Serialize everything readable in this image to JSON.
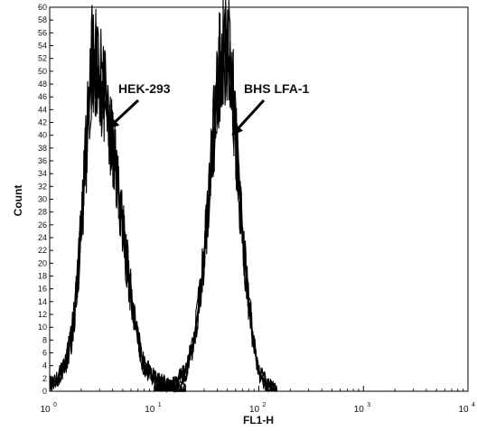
{
  "chart_data": {
    "type": "line",
    "title": "",
    "xlabel": "FL1-H",
    "ylabel": "Count",
    "x_scale": "log",
    "xlim": [
      1,
      10000
    ],
    "ylim": [
      0,
      60
    ],
    "x_ticks": [
      {
        "base": "10",
        "exp": "0"
      },
      {
        "base": "10",
        "exp": "1"
      },
      {
        "base": "10",
        "exp": "2"
      },
      {
        "base": "10",
        "exp": "3"
      },
      {
        "base": "10",
        "exp": "4"
      }
    ],
    "y_ticks": [
      0,
      2,
      4,
      6,
      8,
      10,
      12,
      14,
      16,
      18,
      20,
      22,
      24,
      26,
      28,
      30,
      32,
      34,
      36,
      38,
      40,
      42,
      44,
      46,
      48,
      50,
      52,
      54,
      56,
      58,
      60
    ],
    "grid": false,
    "annotations": [
      {
        "text": "HEK-293",
        "arrow_to": {
          "x": 3.6,
          "y": 41
        }
      },
      {
        "text": "BHS LFA-1",
        "arrow_to": {
          "x": 55,
          "y": 40
        }
      }
    ],
    "series": [
      {
        "x": [
          1.0,
          1.2,
          1.4,
          1.6,
          1.8,
          2.0,
          2.2,
          2.4,
          2.6,
          2.8,
          3.0,
          3.3,
          3.6,
          4.0,
          4.5,
          5.0,
          5.5,
          6.0,
          7.0,
          8.0,
          10.0,
          13.0,
          16.0,
          20.0
        ],
        "values": [
          1,
          2,
          4,
          8,
          15,
          25,
          36,
          46,
          53,
          51,
          49,
          46,
          42,
          38,
          32,
          26,
          20,
          15,
          8,
          4,
          2,
          1,
          0,
          0
        ]
      },
      {
        "x": [
          10.0,
          15.0,
          20.0,
          24.0,
          28.0,
          32.0,
          36.0,
          40.0,
          44.0,
          48.0,
          52.0,
          56.0,
          60.0,
          65.0,
          70.0,
          80.0,
          90.0,
          100.0,
          120.0,
          150.0
        ],
        "values": [
          0,
          1,
          3,
          8,
          16,
          27,
          38,
          47,
          53,
          54,
          52,
          47,
          40,
          32,
          24,
          14,
          7,
          3,
          1,
          0
        ]
      }
    ]
  }
}
